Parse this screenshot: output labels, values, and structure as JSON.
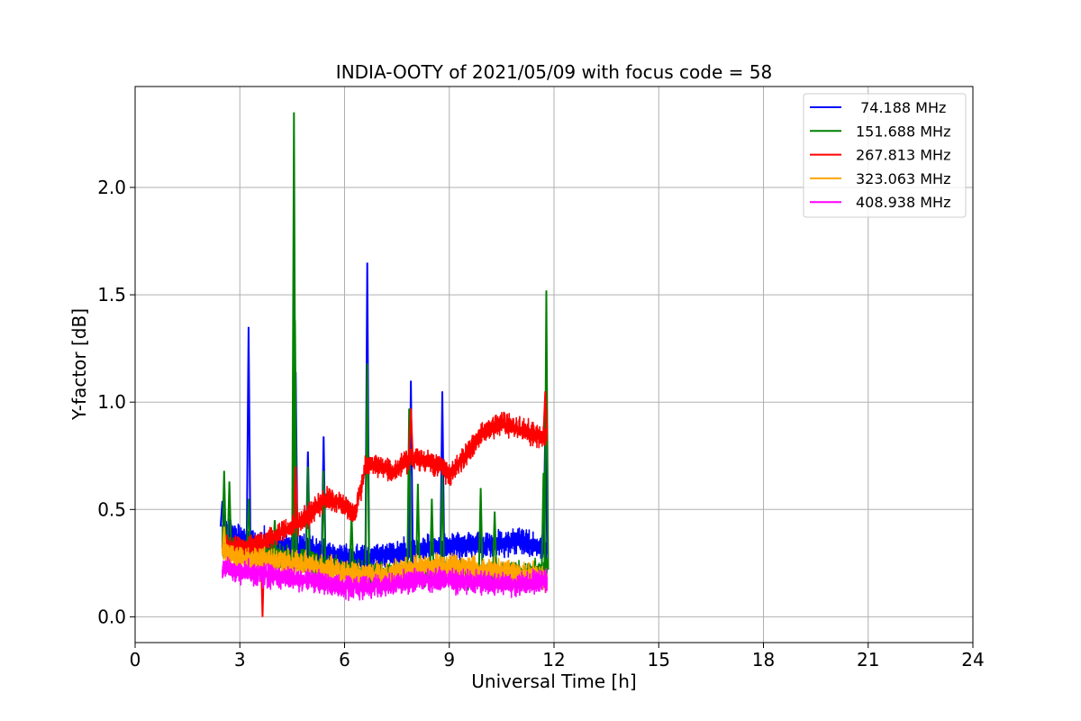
{
  "chart_data": {
    "type": "line",
    "title": "INDIA-OOTY of 2021/05/09 with focus code = 58",
    "xlabel": "Universal Time [h]",
    "ylabel": "Y-factor [dB]",
    "xlim": [
      0,
      24
    ],
    "ylim": [
      -0.12,
      2.47
    ],
    "xticks": [
      0,
      3,
      6,
      9,
      12,
      15,
      18,
      21,
      24
    ],
    "xtick_labels": [
      "0",
      "3",
      "6",
      "9",
      "12",
      "15",
      "18",
      "21",
      "24"
    ],
    "yticks": [
      0.0,
      0.5,
      1.0,
      1.5,
      2.0
    ],
    "ytick_labels": [
      "0.0",
      "0.5",
      "1.0",
      "1.5",
      "2.0"
    ],
    "grid": true,
    "legend_position": "top-right",
    "x_range_of_data": [
      2.5,
      11.8
    ],
    "series": [
      {
        "name": " 74.188 MHz",
        "color": "#0000ff",
        "base": [
          [
            2.5,
            0.42
          ],
          [
            3.0,
            0.36
          ],
          [
            4.0,
            0.34
          ],
          [
            5.0,
            0.32
          ],
          [
            6.0,
            0.27
          ],
          [
            7.0,
            0.28
          ],
          [
            8.0,
            0.31
          ],
          [
            9.0,
            0.33
          ],
          [
            10.0,
            0.34
          ],
          [
            11.0,
            0.35
          ],
          [
            11.8,
            0.32
          ]
        ],
        "noise": 0.05,
        "spikes": [
          [
            2.5,
            0.54
          ],
          [
            3.25,
            1.35
          ],
          [
            4.6,
            1.14
          ],
          [
            4.95,
            0.77
          ],
          [
            5.4,
            0.84
          ],
          [
            6.65,
            1.65
          ],
          [
            7.9,
            1.1
          ],
          [
            8.8,
            1.05
          ],
          [
            11.75,
            0.88
          ]
        ]
      },
      {
        "name": "151.688 MHz",
        "color": "#008000",
        "base": [
          [
            2.5,
            0.32
          ],
          [
            3.0,
            0.3
          ],
          [
            4.0,
            0.28
          ],
          [
            5.0,
            0.25
          ],
          [
            6.0,
            0.21
          ],
          [
            7.0,
            0.19
          ],
          [
            8.0,
            0.2
          ],
          [
            9.0,
            0.2
          ],
          [
            10.0,
            0.19
          ],
          [
            11.0,
            0.2
          ],
          [
            11.8,
            0.22
          ]
        ],
        "noise": 0.05,
        "spikes": [
          [
            2.55,
            0.68
          ],
          [
            2.7,
            0.63
          ],
          [
            3.25,
            0.55
          ],
          [
            4.0,
            0.45
          ],
          [
            4.55,
            2.35
          ],
          [
            4.58,
            1.38
          ],
          [
            4.95,
            0.7
          ],
          [
            5.4,
            0.68
          ],
          [
            6.2,
            0.48
          ],
          [
            6.65,
            1.18
          ],
          [
            7.85,
            0.97
          ],
          [
            8.1,
            0.62
          ],
          [
            8.5,
            0.55
          ],
          [
            8.8,
            0.68
          ],
          [
            9.9,
            0.6
          ],
          [
            10.3,
            0.49
          ],
          [
            11.7,
            0.67
          ],
          [
            11.78,
            1.52
          ]
        ]
      },
      {
        "name": "267.813 MHz",
        "color": "#ff0000",
        "base": [
          [
            2.5,
            0.33
          ],
          [
            3.0,
            0.32
          ],
          [
            3.6,
            0.34
          ],
          [
            4.0,
            0.38
          ],
          [
            4.5,
            0.42
          ],
          [
            5.0,
            0.48
          ],
          [
            5.5,
            0.55
          ],
          [
            6.0,
            0.52
          ],
          [
            6.3,
            0.48
          ],
          [
            6.6,
            0.7
          ],
          [
            7.0,
            0.7
          ],
          [
            7.4,
            0.67
          ],
          [
            7.9,
            0.75
          ],
          [
            8.3,
            0.72
          ],
          [
            8.7,
            0.71
          ],
          [
            9.0,
            0.66
          ],
          [
            9.5,
            0.76
          ],
          [
            10.0,
            0.87
          ],
          [
            10.5,
            0.9
          ],
          [
            11.0,
            0.88
          ],
          [
            11.5,
            0.84
          ],
          [
            11.8,
            0.85
          ]
        ],
        "noise": 0.045,
        "spikes": [
          [
            3.65,
            0.0
          ],
          [
            4.6,
            0.7
          ],
          [
            7.9,
            0.97
          ],
          [
            11.75,
            1.05
          ]
        ]
      },
      {
        "name": "323.063 MHz",
        "color": "#ffa500",
        "base": [
          [
            2.5,
            0.3
          ],
          [
            3.0,
            0.27
          ],
          [
            4.0,
            0.26
          ],
          [
            5.0,
            0.24
          ],
          [
            6.0,
            0.2
          ],
          [
            7.0,
            0.19
          ],
          [
            8.0,
            0.23
          ],
          [
            9.0,
            0.23
          ],
          [
            10.0,
            0.22
          ],
          [
            11.0,
            0.2
          ],
          [
            11.8,
            0.18
          ]
        ],
        "noise": 0.05,
        "spikes": [
          [
            2.55,
            0.42
          ]
        ]
      },
      {
        "name": "408.938 MHz",
        "color": "#ff00ff",
        "base": [
          [
            2.5,
            0.22
          ],
          [
            3.0,
            0.21
          ],
          [
            4.0,
            0.19
          ],
          [
            5.0,
            0.17
          ],
          [
            6.0,
            0.14
          ],
          [
            7.0,
            0.14
          ],
          [
            8.0,
            0.17
          ],
          [
            9.0,
            0.17
          ],
          [
            10.0,
            0.16
          ],
          [
            11.0,
            0.15
          ],
          [
            11.8,
            0.17
          ]
        ],
        "noise": 0.045,
        "spikes": []
      }
    ]
  }
}
